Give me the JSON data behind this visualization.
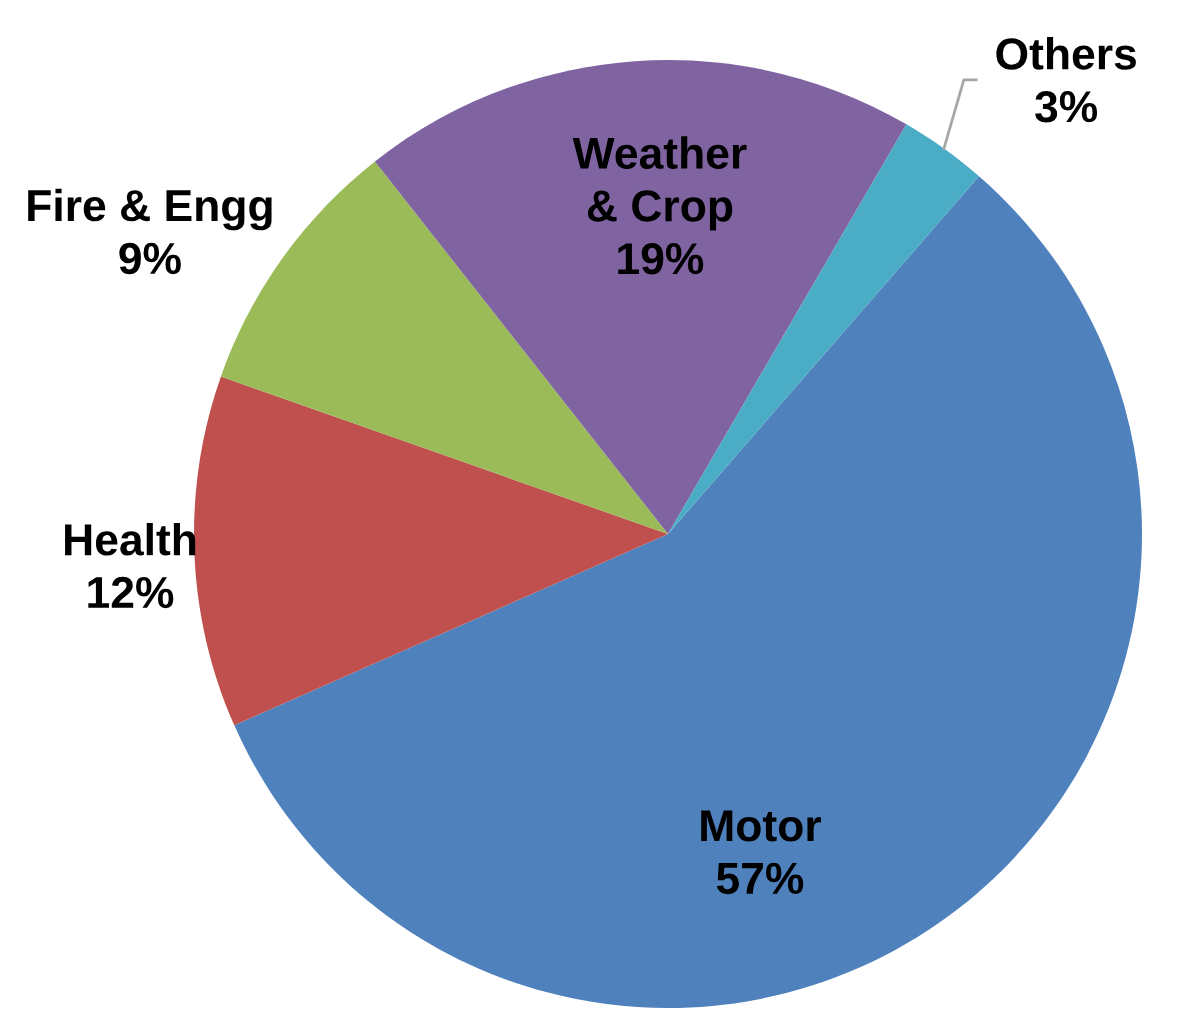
{
  "chart_data": {
    "type": "pie",
    "categories": [
      "Motor",
      "Health",
      "Fire & Engg",
      "Weather & Crop",
      "Others"
    ],
    "values": [
      57,
      12,
      9,
      19,
      3
    ],
    "value_labels": [
      "57%",
      "12%",
      "9%",
      "19%",
      "3%"
    ],
    "colors": [
      "#4f81bd",
      "#c0504d",
      "#9bbb59",
      "#8064a2",
      "#4bacc6"
    ],
    "legend": false
  }
}
